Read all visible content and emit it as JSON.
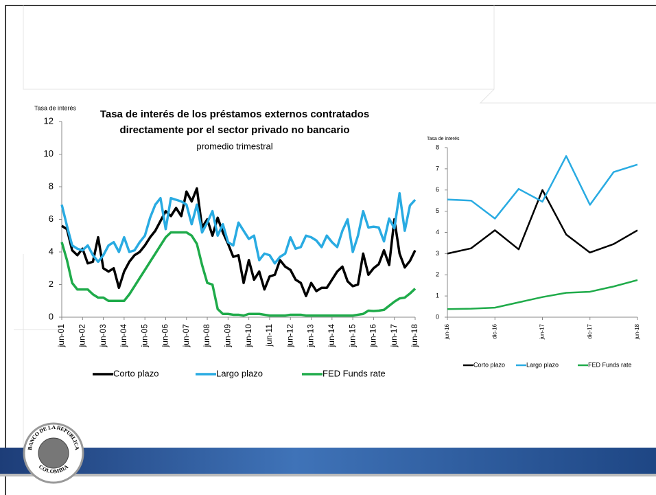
{
  "chart_data": [
    {
      "type": "line",
      "title": [
        "Tasa de interés de los préstamos externos contratados",
        "directamente por el sector privado no bancario"
      ],
      "subtitle": "promedio trimestral",
      "y_label": "Tasa de interés",
      "categories": [
        "jun-01",
        null,
        null,
        null,
        "jun-02",
        null,
        null,
        null,
        "jun-03",
        null,
        null,
        null,
        "jun-04",
        null,
        null,
        null,
        "jun-05",
        null,
        null,
        null,
        "jun-06",
        null,
        null,
        null,
        "jun-07",
        null,
        null,
        null,
        "jun-08",
        null,
        null,
        null,
        "jun-09",
        null,
        null,
        null,
        "jun-10",
        null,
        null,
        null,
        "jun-11",
        null,
        null,
        null,
        "jun-12",
        null,
        null,
        null,
        "jun-13",
        null,
        null,
        null,
        "jun-14",
        null,
        null,
        null,
        "jun-15",
        null,
        null,
        null,
        "jun-16",
        null,
        null,
        null,
        "jun-17",
        null,
        null,
        null,
        "jun-18"
      ],
      "series": [
        {
          "name": "Corto plazo",
          "color": "#000000",
          "values": [
            5.6,
            5.4,
            4.1,
            3.8,
            4.2,
            3.3,
            3.4,
            4.9,
            3.0,
            2.8,
            3.0,
            1.8,
            2.8,
            3.4,
            3.8,
            4.0,
            4.4,
            4.9,
            5.3,
            5.9,
            6.5,
            6.2,
            6.7,
            6.2,
            7.7,
            7.1,
            7.9,
            5.5,
            6.0,
            5.0,
            6.1,
            5.2,
            4.5,
            3.7,
            3.8,
            2.1,
            3.5,
            2.3,
            2.8,
            1.7,
            2.5,
            2.6,
            3.5,
            3.1,
            2.9,
            2.3,
            2.1,
            1.3,
            2.1,
            1.6,
            1.8,
            1.8,
            2.3,
            2.8,
            3.1,
            2.2,
            1.9,
            2.0,
            3.9,
            2.6,
            3.0,
            3.25,
            4.1,
            3.2,
            6.0,
            3.9,
            3.05,
            3.45,
            4.1
          ]
        },
        {
          "name": "Largo plazo",
          "color": "#29abe2",
          "values": [
            6.9,
            5.6,
            4.4,
            4.2,
            4.1,
            4.4,
            3.8,
            3.4,
            3.8,
            4.4,
            4.6,
            4.0,
            4.9,
            4.0,
            4.1,
            4.6,
            5.0,
            6.1,
            6.9,
            7.3,
            5.4,
            7.3,
            7.2,
            7.1,
            6.9,
            5.7,
            6.9,
            5.2,
            5.8,
            6.5,
            5.0,
            5.7,
            4.6,
            4.4,
            5.8,
            5.3,
            4.8,
            5.0,
            3.5,
            3.9,
            3.8,
            3.3,
            3.7,
            3.9,
            4.9,
            4.2,
            4.3,
            5.0,
            4.9,
            4.7,
            4.3,
            5.0,
            4.6,
            4.3,
            5.3,
            6.0,
            4.0,
            5.0,
            6.5,
            5.5,
            5.55,
            5.5,
            4.65,
            6.05,
            5.45,
            7.6,
            5.3,
            6.85,
            7.2
          ]
        },
        {
          "name": "FED Funds rate",
          "color": "#1fab4a",
          "values": [
            4.6,
            3.5,
            2.1,
            1.7,
            1.7,
            1.7,
            1.4,
            1.2,
            1.2,
            1.0,
            1.0,
            1.0,
            1.0,
            1.4,
            1.9,
            2.4,
            2.9,
            3.4,
            3.9,
            4.4,
            4.9,
            5.2,
            5.2,
            5.2,
            5.2,
            5.0,
            4.5,
            3.2,
            2.1,
            2.0,
            0.5,
            0.2,
            0.2,
            0.15,
            0.15,
            0.1,
            0.2,
            0.2,
            0.2,
            0.15,
            0.1,
            0.1,
            0.1,
            0.1,
            0.15,
            0.15,
            0.15,
            0.1,
            0.1,
            0.1,
            0.1,
            0.1,
            0.1,
            0.1,
            0.1,
            0.1,
            0.1,
            0.15,
            0.2,
            0.4,
            0.38,
            0.4,
            0.45,
            0.7,
            0.95,
            1.15,
            1.2,
            1.45,
            1.75
          ]
        }
      ],
      "ylim": [
        0,
        12
      ],
      "yticks": [
        0,
        2,
        4,
        6,
        8,
        10,
        12
      ],
      "grid": false,
      "legend": "bottom"
    },
    {
      "type": "line",
      "y_label": "Tasa de interés",
      "categories": [
        "jun-16",
        null,
        "dic-16",
        null,
        "jun-17",
        null,
        "dic-17",
        null,
        "jun-18"
      ],
      "series": [
        {
          "name": "Corto plazo",
          "color": "#000000",
          "values": [
            3.0,
            3.25,
            4.1,
            3.2,
            6.0,
            3.9,
            3.05,
            3.45,
            4.1
          ]
        },
        {
          "name": "Largo plazo",
          "color": "#29abe2",
          "values": [
            5.55,
            5.5,
            4.65,
            6.05,
            5.45,
            7.6,
            5.3,
            6.85,
            7.2
          ]
        },
        {
          "name": "FED Funds rate",
          "color": "#1fab4a",
          "values": [
            0.38,
            0.4,
            0.45,
            0.7,
            0.95,
            1.15,
            1.2,
            1.45,
            1.75
          ]
        }
      ],
      "ylim": [
        0,
        8
      ],
      "yticks": [
        0,
        1,
        2,
        3,
        4,
        5,
        6,
        7,
        8
      ],
      "grid": false,
      "legend": "bottom"
    }
  ],
  "logo": {
    "top": "BANCO DE LA REPUBLICA",
    "bottom": "COLOMBIA"
  }
}
